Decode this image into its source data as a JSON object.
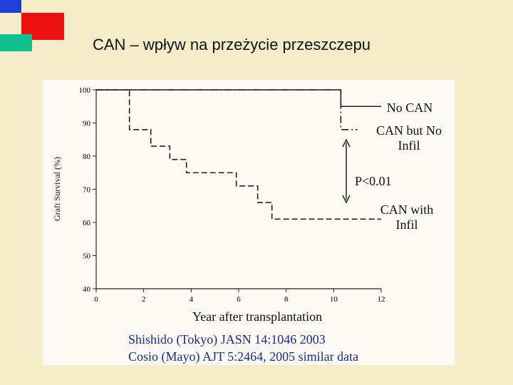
{
  "title": "CAN – wpływ na przeżycie przeszczepu",
  "chart_data": {
    "type": "step",
    "y_label": "Graft Survival (%)",
    "x_label": "Year after transplantation",
    "annotation": "P<0.01",
    "xlim": [
      0,
      12
    ],
    "xticks": [
      0,
      2,
      4,
      6,
      8,
      10,
      12
    ],
    "ylim": [
      40,
      100
    ],
    "yticks": [
      40,
      50,
      60,
      70,
      80,
      90,
      100
    ],
    "series": [
      {
        "name": "No CAN",
        "color": "#222222",
        "style": "solid",
        "x": [
          0,
          10.3,
          12
        ],
        "values": [
          100,
          95,
          95
        ]
      },
      {
        "name": "CAN but No Infil",
        "color": "#222222",
        "style": "dashdot",
        "x": [
          0,
          10.3,
          11
        ],
        "values": [
          100,
          88,
          88
        ]
      },
      {
        "name": "CAN with Infil",
        "color": "#222222",
        "style": "dashed",
        "x": [
          0,
          1.4,
          2.3,
          3.1,
          3.8,
          5.9,
          6.8,
          7.4,
          12
        ],
        "values": [
          100,
          88,
          83,
          79,
          75,
          71,
          66,
          61,
          61
        ]
      }
    ]
  },
  "references": [
    "Shishido (Tokyo) JASN 14:1046 2003",
    "Cosio (Mayo) AJT 5:2464, 2005 similar data"
  ]
}
